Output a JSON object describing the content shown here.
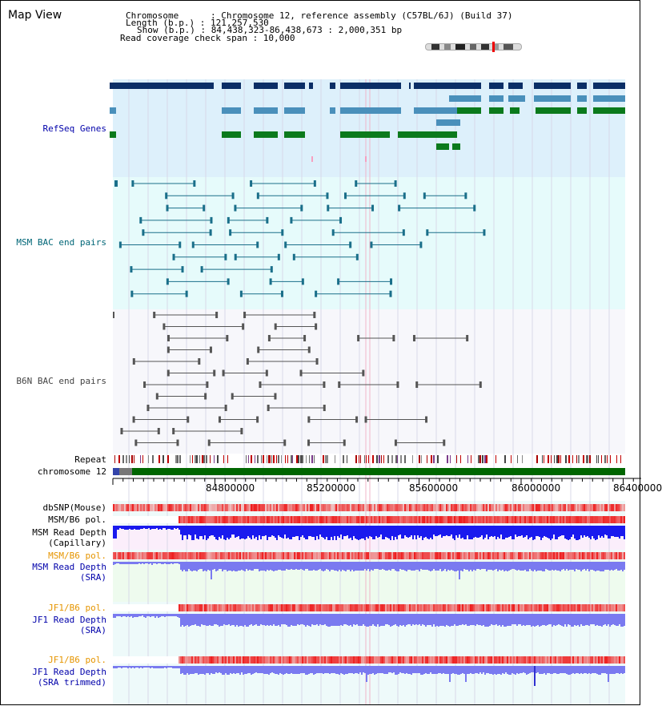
{
  "header": {
    "title": "Map View",
    "chromosome_label": "Chromosome      : Chromosome 12, reference assembly (C57BL/6J) (Build 37)",
    "length_label": "Length (b.p.) : 121,257,530",
    "show_label": "Show (b.p.) : 84,438,323-86,438,673 : 2,000,351 bp",
    "coverage_label": "Read coverage check span : 10,000"
  },
  "tracks": {
    "refseq": "RefSeq Genes",
    "msm_bac": "MSM BAC end pairs",
    "b6n_bac": "B6N BAC end pairs",
    "repeat": "Repeat",
    "chromosome": "chromosome 12",
    "dbsnp": "dbSNP(Mouse)",
    "msm_b6_pol_1": "MSM/B6 pol.",
    "msm_depth_cap_1": "MSM Read Depth",
    "msm_depth_cap_2": "(Capillary)",
    "msm_b6_pol_2": "MSM/B6 pol.",
    "msm_depth_sra_1": "MSM Read Depth",
    "msm_depth_sra_2": "(SRA)",
    "jf1_b6_pol_1": "JF1/B6 pol.",
    "jf1_depth_sra_1": "JF1 Read Depth",
    "jf1_depth_sra_2": "(SRA)",
    "jf1_b6_pol_2": "JF1/B6 pol.",
    "jf1_depth_trim_1": "JF1 Read Depth",
    "jf1_depth_trim_2": "(SRA trimmed)"
  },
  "axis": {
    "ticks": [
      "84800000",
      "85200000",
      "85600000",
      "86000000",
      "86400000"
    ]
  },
  "colors": {
    "refseq_bg": "#ddf0fb",
    "msm_bac_bg": "#e6fbfb",
    "b6n_bac_bg": "#f7f7fb",
    "refseq_dark": "#0b2e66",
    "refseq_mid": "#4a90bb",
    "refseq_green": "#0b7a1c",
    "msm_line": "#1a6f8a",
    "b6n_line": "#555555",
    "chrom_green": "#006600",
    "pol_red": "#ee3333",
    "depth_blue": "#1a1aee",
    "depth_light": "#7a7af0",
    "label_blue": "#0000aa",
    "label_orange": "#e69500",
    "label_teal": "#006677"
  }
}
